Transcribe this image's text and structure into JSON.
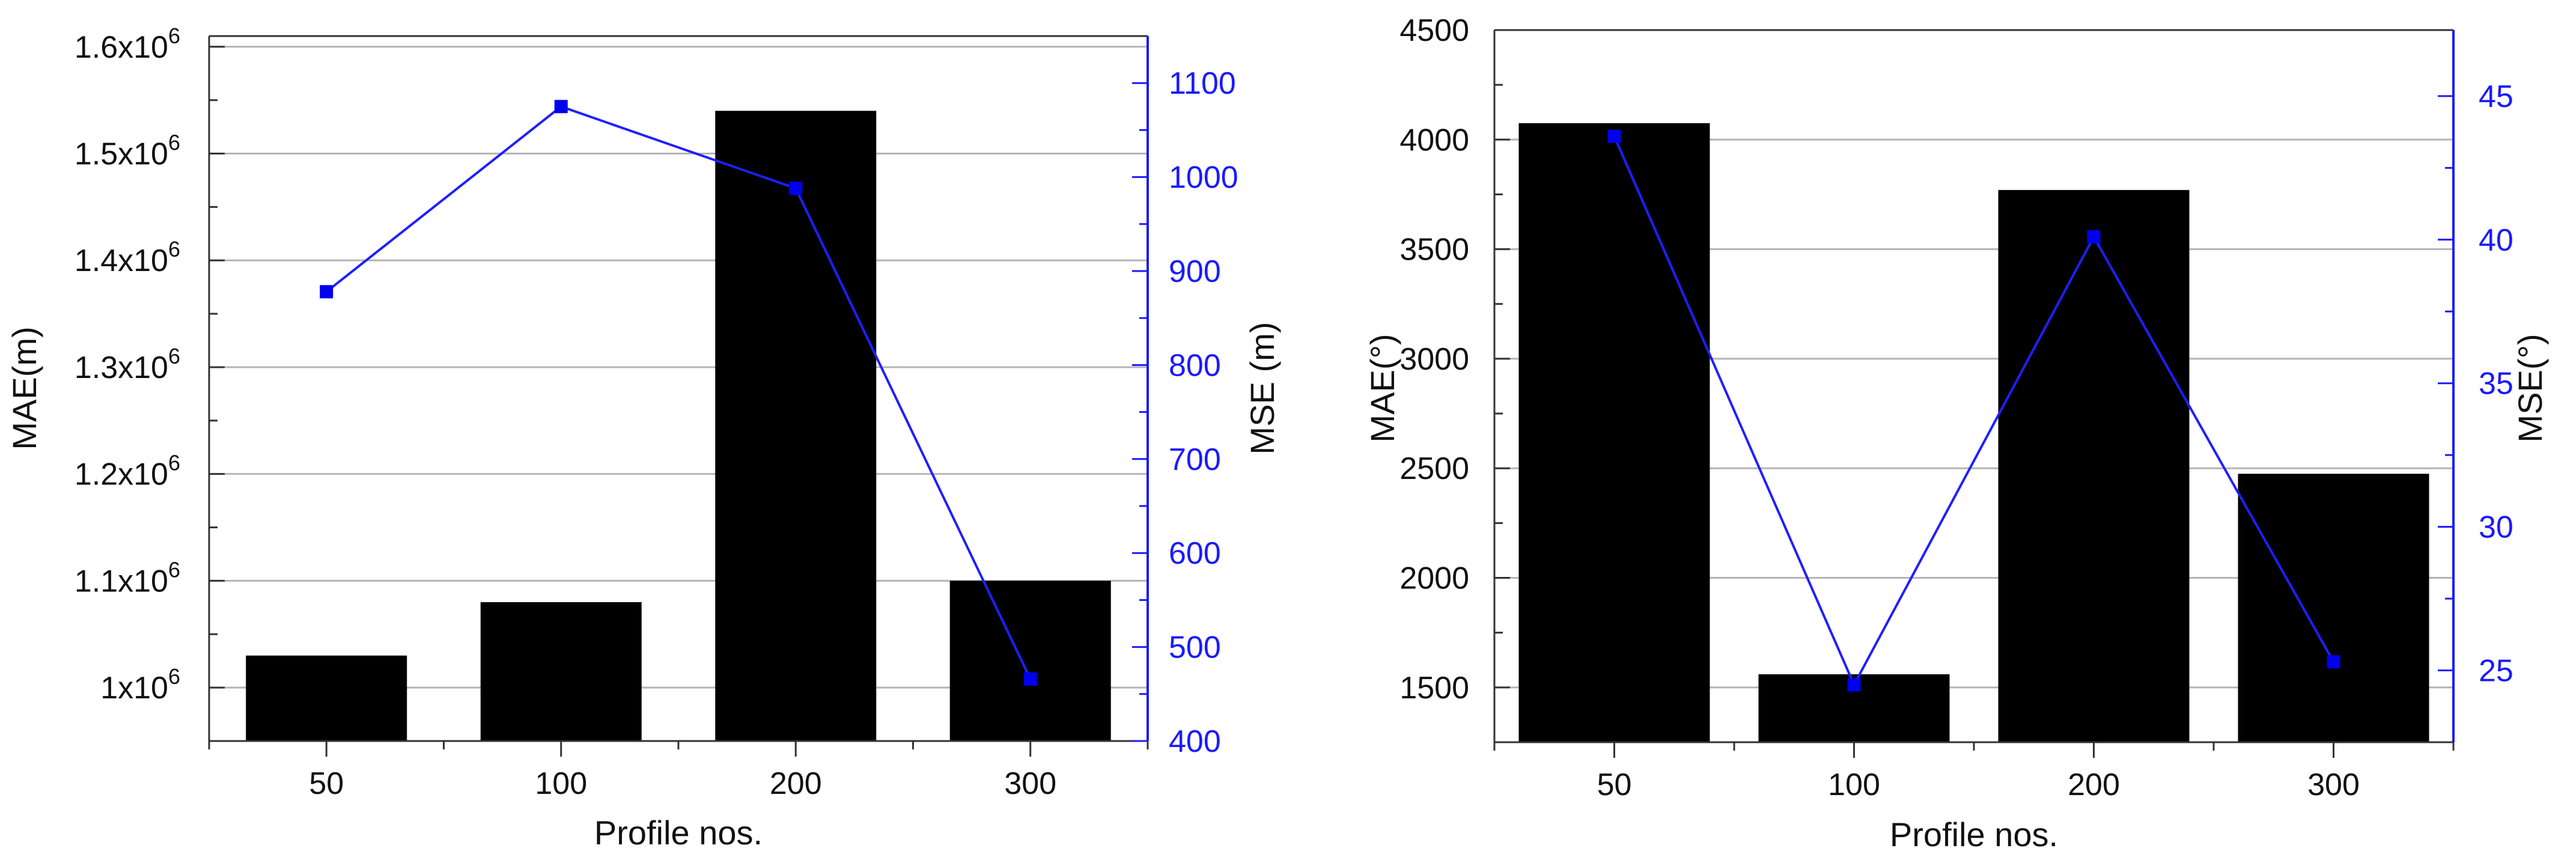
{
  "chart_data": [
    {
      "type": "bar",
      "overlay": "line",
      "categories": [
        "50",
        "100",
        "200",
        "300"
      ],
      "xlabel": "Profile nos.",
      "ylabel": "MAE(m)",
      "y2label": "MSE (m)",
      "ylim": [
        950000,
        1610000
      ],
      "y2lim": [
        400,
        1150
      ],
      "yticks": [
        {
          "value": 1000000,
          "base": "1x10",
          "exp": "6"
        },
        {
          "value": 1100000,
          "base": "1.1x10",
          "exp": "6"
        },
        {
          "value": 1200000,
          "base": "1.2x10",
          "exp": "6"
        },
        {
          "value": 1300000,
          "base": "1.3x10",
          "exp": "6"
        },
        {
          "value": 1400000,
          "base": "1.4x10",
          "exp": "6"
        },
        {
          "value": 1500000,
          "base": "1.5x10",
          "exp": "6"
        },
        {
          "value": 1600000,
          "base": "1.6x10",
          "exp": "6"
        }
      ],
      "y2ticks": [
        "400",
        "500",
        "600",
        "700",
        "800",
        "900",
        "1000",
        "1100"
      ],
      "series": [
        {
          "kind": "bar",
          "axis": "left",
          "values": [
            1030000,
            1080000,
            1540000,
            1100000
          ]
        },
        {
          "kind": "line",
          "axis": "right",
          "values": [
            878,
            1075,
            988,
            466
          ]
        }
      ],
      "grid": "horizontal"
    },
    {
      "type": "bar",
      "overlay": "line",
      "categories": [
        "50",
        "100",
        "200",
        "300"
      ],
      "xlabel": "Profile nos.",
      "ylabel": "MAE(°)",
      "y2label": "MSE(°)",
      "ylim": [
        1250,
        4500
      ],
      "y2lim": [
        22.5,
        47.3
      ],
      "yticks": [
        "1500",
        "2000",
        "2500",
        "3000",
        "3500",
        "4000",
        "4500"
      ],
      "y2ticks": [
        "25",
        "30",
        "35",
        "40",
        "45"
      ],
      "series": [
        {
          "kind": "bar",
          "axis": "left",
          "values": [
            4075,
            1560,
            3770,
            2475
          ]
        },
        {
          "kind": "line",
          "axis": "right",
          "values": [
            43.6,
            24.5,
            40.1,
            25.3
          ]
        }
      ],
      "grid": "horizontal"
    }
  ],
  "colors": {
    "bar": "#000000",
    "line": "#1f1fff",
    "marker": "#0000ee",
    "grid": "#b4b4b4",
    "axis": "#333333",
    "right_axis": "#1a1aff"
  }
}
